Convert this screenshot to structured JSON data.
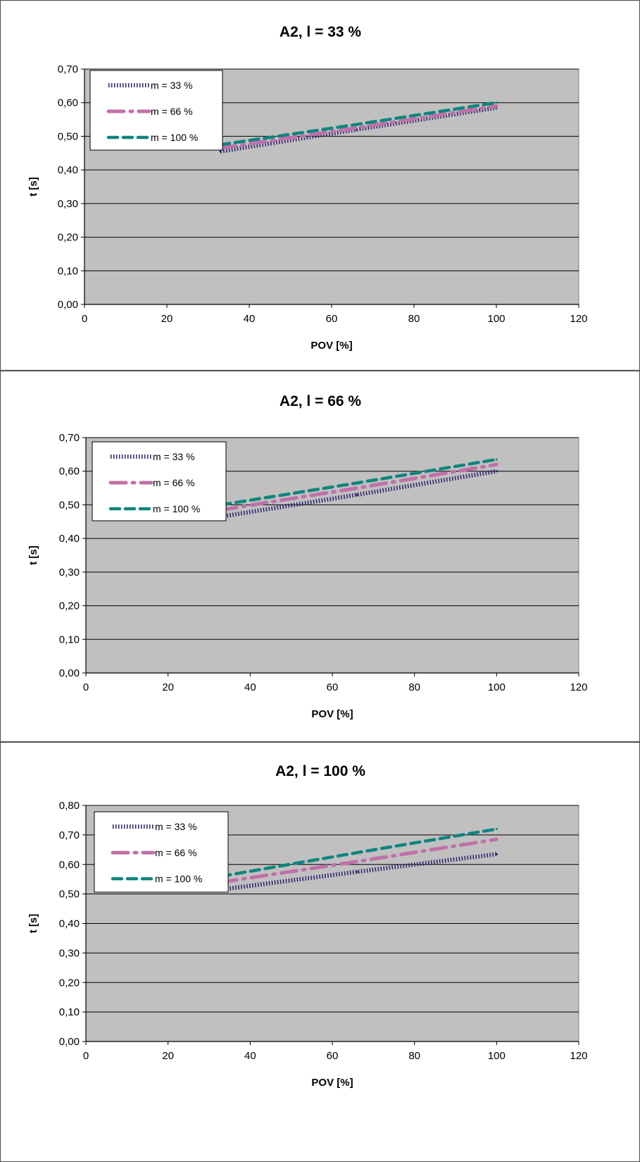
{
  "chart_data": [
    {
      "type": "line",
      "title": "A2, l = 33 %",
      "xlabel": "POV [%]",
      "ylabel": "t [s]",
      "xlim": [
        0,
        120
      ],
      "ylim": [
        0,
        0.7
      ],
      "xticks": [
        0,
        20,
        40,
        60,
        80,
        100,
        120
      ],
      "yticks": [
        0,
        0.1,
        0.2,
        0.3,
        0.4,
        0.5,
        0.6,
        0.7
      ],
      "x_tick_labels": [
        "0",
        "20",
        "40",
        "60",
        "80",
        "100",
        "120"
      ],
      "y_tick_labels": [
        "0,00",
        "0,10",
        "0,20",
        "0,30",
        "0,40",
        "0,50",
        "0,60",
        "0,70"
      ],
      "grid": true,
      "legend": "top-left",
      "x": [
        33,
        66,
        100
      ],
      "series": [
        {
          "name": "m = 33 %",
          "values": [
            0.455,
            0.52,
            0.585
          ],
          "color": "#2a1f6b",
          "style": "dotted"
        },
        {
          "name": "m = 66 %",
          "values": [
            0.465,
            0.525,
            0.59
          ],
          "color": "#c070a8",
          "style": "dashdot"
        },
        {
          "name": "m = 100 %",
          "values": [
            0.475,
            0.535,
            0.6
          ],
          "color": "#0e857e",
          "style": "dashed"
        }
      ]
    },
    {
      "type": "line",
      "title": "A2, l = 66 %",
      "xlabel": "POV [%]",
      "ylabel": "t [s]",
      "xlim": [
        0,
        120
      ],
      "ylim": [
        0,
        0.7
      ],
      "xticks": [
        0,
        20,
        40,
        60,
        80,
        100,
        120
      ],
      "yticks": [
        0,
        0.1,
        0.2,
        0.3,
        0.4,
        0.5,
        0.6,
        0.7
      ],
      "x_tick_labels": [
        "0",
        "20",
        "40",
        "60",
        "80",
        "100",
        "120"
      ],
      "y_tick_labels": [
        "0,00",
        "0,10",
        "0,20",
        "0,30",
        "0,40",
        "0,50",
        "0,60",
        "0,70"
      ],
      "grid": true,
      "legend": "top-left",
      "x": [
        33,
        66,
        100
      ],
      "series": [
        {
          "name": "m = 33 %",
          "values": [
            0.465,
            0.53,
            0.6
          ],
          "color": "#2a1f6b",
          "style": "dotted"
        },
        {
          "name": "m = 66 %",
          "values": [
            0.485,
            0.55,
            0.62
          ],
          "color": "#c070a8",
          "style": "dashdot"
        },
        {
          "name": "m = 100 %",
          "values": [
            0.5,
            0.565,
            0.635
          ],
          "color": "#0e857e",
          "style": "dashed"
        }
      ]
    },
    {
      "type": "line",
      "title": "A2, l = 100 %",
      "xlabel": "POV [%]",
      "ylabel": "t [s]",
      "xlim": [
        0,
        120
      ],
      "ylim": [
        0,
        0.8
      ],
      "xticks": [
        0,
        20,
        40,
        60,
        80,
        100,
        120
      ],
      "yticks": [
        0,
        0.1,
        0.2,
        0.3,
        0.4,
        0.5,
        0.6,
        0.7,
        0.8
      ],
      "x_tick_labels": [
        "0",
        "20",
        "40",
        "60",
        "80",
        "100",
        "120"
      ],
      "y_tick_labels": [
        "0,00",
        "0,10",
        "0,20",
        "0,30",
        "0,40",
        "0,50",
        "0,60",
        "0,70",
        "0,80"
      ],
      "grid": true,
      "legend": "top-left",
      "x": [
        33,
        66,
        100
      ],
      "series": [
        {
          "name": "m = 33 %",
          "values": [
            0.515,
            0.575,
            0.635
          ],
          "color": "#2a1f6b",
          "style": "dotted"
        },
        {
          "name": "m = 66 %",
          "values": [
            0.54,
            0.61,
            0.685
          ],
          "color": "#c070a8",
          "style": "dashdot"
        },
        {
          "name": "m = 100 %",
          "values": [
            0.56,
            0.64,
            0.72
          ],
          "color": "#0e857e",
          "style": "dashed"
        }
      ]
    }
  ],
  "colors": {
    "plot_background": "#c0c0c0",
    "gridline": "#000000",
    "panel_border": "#555555",
    "legend_background": "#ffffff"
  }
}
